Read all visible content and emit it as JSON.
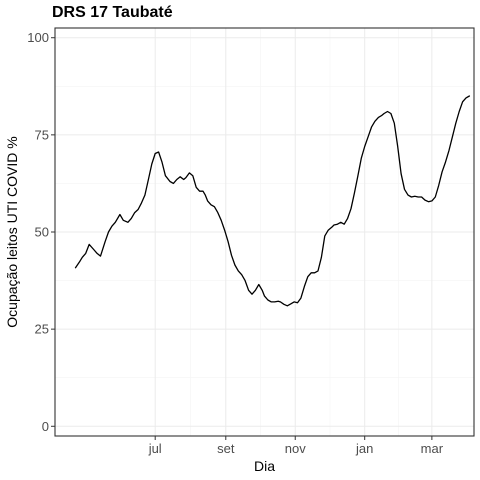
{
  "chart_data": {
    "type": "line",
    "title": "DRS 17 Taubaté",
    "xlabel": "Dia",
    "ylabel": "Ocupação leitos UTI COVID %",
    "ylim": [
      -2.5,
      102.5
    ],
    "yticks": [
      0,
      25,
      50,
      75,
      100
    ],
    "xlim": [
      "2020-04-04",
      "2021-04-07"
    ],
    "xticks": [
      {
        "date": "2020-07-01",
        "label": "jul"
      },
      {
        "date": "2020-09-01",
        "label": "set"
      },
      {
        "date": "2020-11-01",
        "label": "nov"
      },
      {
        "date": "2021-01-01",
        "label": "jan"
      },
      {
        "date": "2021-03-01",
        "label": "mar"
      }
    ],
    "grid": true,
    "series": [
      {
        "color": "#000000",
        "x": [
          "2020-04-22",
          "2020-04-26",
          "2020-04-28",
          "2020-05-01",
          "2020-05-04",
          "2020-05-08",
          "2020-05-11",
          "2020-05-14",
          "2020-05-18",
          "2020-05-21",
          "2020-05-24",
          "2020-05-27",
          "2020-05-31",
          "2020-06-03",
          "2020-06-07",
          "2020-06-10",
          "2020-06-13",
          "2020-06-16",
          "2020-06-19",
          "2020-06-22",
          "2020-06-25",
          "2020-06-28",
          "2020-07-01",
          "2020-07-04",
          "2020-07-07",
          "2020-07-10",
          "2020-07-14",
          "2020-07-17",
          "2020-07-20",
          "2020-07-23",
          "2020-07-26",
          "2020-07-28",
          "2020-07-31",
          "2020-08-03",
          "2020-08-06",
          "2020-08-09",
          "2020-08-12",
          "2020-08-14",
          "2020-08-16",
          "2020-08-19",
          "2020-08-22",
          "2020-08-25",
          "2020-08-28",
          "2020-08-31",
          "2020-09-03",
          "2020-09-06",
          "2020-09-09",
          "2020-09-12",
          "2020-09-15",
          "2020-09-18",
          "2020-09-21",
          "2020-09-24",
          "2020-09-27",
          "2020-09-30",
          "2020-10-03",
          "2020-10-05",
          "2020-10-08",
          "2020-10-11",
          "2020-10-14",
          "2020-10-17",
          "2020-10-19",
          "2020-10-22",
          "2020-10-25",
          "2020-10-28",
          "2020-10-31",
          "2020-11-03",
          "2020-11-06",
          "2020-11-09",
          "2020-11-12",
          "2020-11-15",
          "2020-11-18",
          "2020-11-21",
          "2020-11-24",
          "2020-11-27",
          "2020-11-30",
          "2020-12-03",
          "2020-12-05",
          "2020-12-08",
          "2020-12-11",
          "2020-12-14",
          "2020-12-17",
          "2020-12-20",
          "2020-12-23",
          "2020-12-26",
          "2020-12-29",
          "2021-01-01",
          "2021-01-04",
          "2021-01-07",
          "2021-01-10",
          "2021-01-13",
          "2021-01-16",
          "2021-01-18",
          "2021-01-21",
          "2021-01-24",
          "2021-01-27",
          "2021-01-30",
          "2021-02-02",
          "2021-02-05",
          "2021-02-08",
          "2021-02-11",
          "2021-02-14",
          "2021-02-17",
          "2021-02-20",
          "2021-02-23",
          "2021-02-26",
          "2021-03-01",
          "2021-03-04",
          "2021-03-07",
          "2021-03-10",
          "2021-03-13",
          "2021-03-16",
          "2021-03-19",
          "2021-03-22",
          "2021-03-25",
          "2021-03-28",
          "2021-03-31",
          "2021-04-03"
        ],
        "y": [
          40.8,
          42.5,
          43.5,
          44.5,
          46.8,
          45.5,
          44.5,
          43.8,
          47.5,
          50,
          51.5,
          52.5,
          54.5,
          53,
          52.5,
          53.5,
          55,
          55.8,
          57.5,
          59.5,
          63.5,
          67.5,
          70.2,
          70.6,
          68,
          64.5,
          63,
          62.5,
          63.5,
          64.2,
          63.5,
          64,
          65.2,
          64.5,
          61.5,
          60.5,
          60.5,
          59.5,
          58,
          57,
          56.5,
          55,
          53,
          50.5,
          47.5,
          44,
          41.5,
          40,
          39,
          37.5,
          35,
          34,
          35,
          36.5,
          35,
          33.5,
          32.5,
          32,
          32,
          32.2,
          32,
          31.4,
          31,
          31.5,
          32,
          31.8,
          33,
          36,
          38.5,
          39.5,
          39.5,
          40,
          43.5,
          49,
          50.5,
          51.2,
          51.8,
          52,
          52.5,
          52,
          53.5,
          56,
          60,
          64.5,
          69,
          72,
          74.5,
          77,
          78.5,
          79.5,
          80,
          80.5,
          81,
          80.5,
          78,
          72,
          65,
          61,
          59.5,
          59,
          59.2,
          59,
          59,
          58.2,
          57.8,
          58,
          59,
          62,
          65.5,
          68,
          71,
          74.5,
          78,
          81,
          83.5,
          84.5,
          85
        ]
      }
    ]
  }
}
